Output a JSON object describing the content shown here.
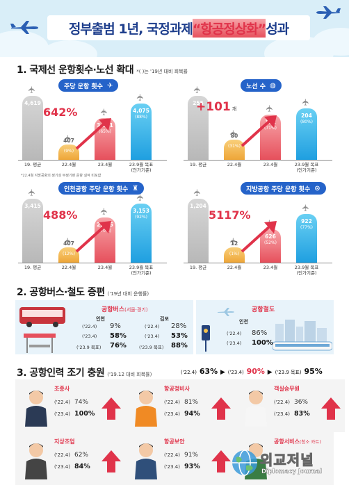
{
  "header": {
    "title_prefix": "정부출범 1년, 국정과제 ",
    "title_highlight": "“항공정상화”",
    "title_suffix": " 성과"
  },
  "section1": {
    "title": "1. 국제선 운항횟수·노선 확대",
    "note": "*( )는 '19년 대비 회복률",
    "footnote": "*22.4월 지방공항의 정기성 부정기편 운항 실적 미포함",
    "panels": [
      {
        "pill": "주당 운항 횟수",
        "pill_icon": "airplane-icon",
        "growth": "642%",
        "growth_unit": "",
        "bars": [
          {
            "label": "19. 평균",
            "value": "4,619",
            "rate": ""
          },
          {
            "label": "22.4월",
            "value": "407",
            "rate": "(9%)"
          },
          {
            "label": "23.4월",
            "value": "3,021",
            "rate": "(65%)"
          },
          {
            "label": "23.9월 목표\n(인가기준)",
            "value": "4,075",
            "rate": "(88%)"
          }
        ]
      },
      {
        "pill": "노선 수",
        "pill_icon": "globe-icon",
        "growth": "+101",
        "growth_unit": "개",
        "bars": [
          {
            "label": "19. 평균",
            "value": "255",
            "rate": ""
          },
          {
            "label": "22.4월",
            "value": "80",
            "rate": "(31%)"
          },
          {
            "label": "23.4월",
            "value": "181",
            "rate": "(71%)"
          },
          {
            "label": "23.9월 목표\n(인가기준)",
            "value": "204",
            "rate": "(80%)"
          }
        ]
      },
      {
        "pill": "인천공항 주당 운항 횟수",
        "pill_icon": "control-tower-icon",
        "growth": "488%",
        "growth_unit": "",
        "bars": [
          {
            "label": "19. 평균",
            "value": "3,415",
            "rate": ""
          },
          {
            "label": "22.4월",
            "value": "407",
            "rate": "(12%)"
          },
          {
            "label": "23.4월",
            "value": "2,395",
            "rate": "(70%)"
          },
          {
            "label": "23.9월 목표\n(인가기준)",
            "value": "3,153",
            "rate": "(92%)"
          }
        ]
      },
      {
        "pill": "지방공항 주당 운항 횟수",
        "pill_icon": "location-pin-icon",
        "growth": "5117%",
        "growth_unit": "",
        "bars": [
          {
            "label": "19. 평균",
            "value": "1,204",
            "rate": ""
          },
          {
            "label": "22.4월",
            "value": "12",
            "rate": "(1%)"
          },
          {
            "label": "23.4월",
            "value": "626",
            "rate": "(52%)"
          },
          {
            "label": "23.9월 목표\n(인가기준)",
            "value": "922",
            "rate": "(77%)"
          }
        ]
      }
    ]
  },
  "section2": {
    "title": "2. 공항버스·철도 증편",
    "note": "('19년 대비 운행률)",
    "bus": {
      "title": "공항버스",
      "title_sub": "(서울·경기)",
      "col1": {
        "name": "인천",
        "r1": "('22.4)",
        "v1": "9%",
        "r2": "('23.4)",
        "v2": "58%",
        "r3": "('23.9 목표)",
        "v3": "76%"
      },
      "col2": {
        "name": "김포",
        "r1": "('22.4)",
        "v1": "28%",
        "r2": "('23.4)",
        "v2": "53%",
        "r3": "('23.9 목표)",
        "v3": "88%"
      }
    },
    "rail": {
      "title": "공항철도",
      "name": "인천",
      "r1": "('22.4)",
      "v1": "86%",
      "r2": "('23.4)",
      "v2": "100%"
    }
  },
  "section3": {
    "title": "3. 공항인력 조기 충원",
    "note": "('19.12 대비 회복률)",
    "summary": {
      "p1": "('22.4)",
      "v1": "63%",
      "p2": "('23.4)",
      "v2": "90%",
      "p3": "('23.9 목표)",
      "v3": "95%"
    },
    "cards": [
      {
        "role": "조종사",
        "r1": "('22.4)",
        "v1": "74%",
        "r2": "('23.4)",
        "v2": "100%",
        "icon": "pilot-icon"
      },
      {
        "role": "항공정비사",
        "r1": "('22.4)",
        "v1": "81%",
        "r2": "('23.4)",
        "v2": "94%",
        "icon": "mechanic-icon"
      },
      {
        "role": "객실승무원",
        "r1": "('22.4)",
        "v1": "36%",
        "r2": "('23.4)",
        "v2": "83%",
        "icon": "flight-attendant-icon"
      },
      {
        "role": "지상조업",
        "r1": "('22.4)",
        "v1": "62%",
        "r2": "('23.4)",
        "v2": "84%",
        "icon": "ground-crew-icon"
      },
      {
        "role": "항공보안",
        "r1": "('22.4)",
        "v1": "91%",
        "r2": "('23.4)",
        "v2": "93%",
        "icon": "security-guard-icon"
      },
      {
        "role": "공항서비스",
        "role_sub": "(청소 카트)",
        "icon": "airport-service-icon"
      }
    ]
  },
  "watermark": {
    "name": "외교저널",
    "sub": "Diplomacy Journal"
  },
  "colors": {
    "navy": "#1e3e8c",
    "red": "#e0334a",
    "blue": "#2563c9",
    "orange": "#eea638",
    "sky": "#1f9fe0",
    "gray": "#b8b8b8"
  }
}
